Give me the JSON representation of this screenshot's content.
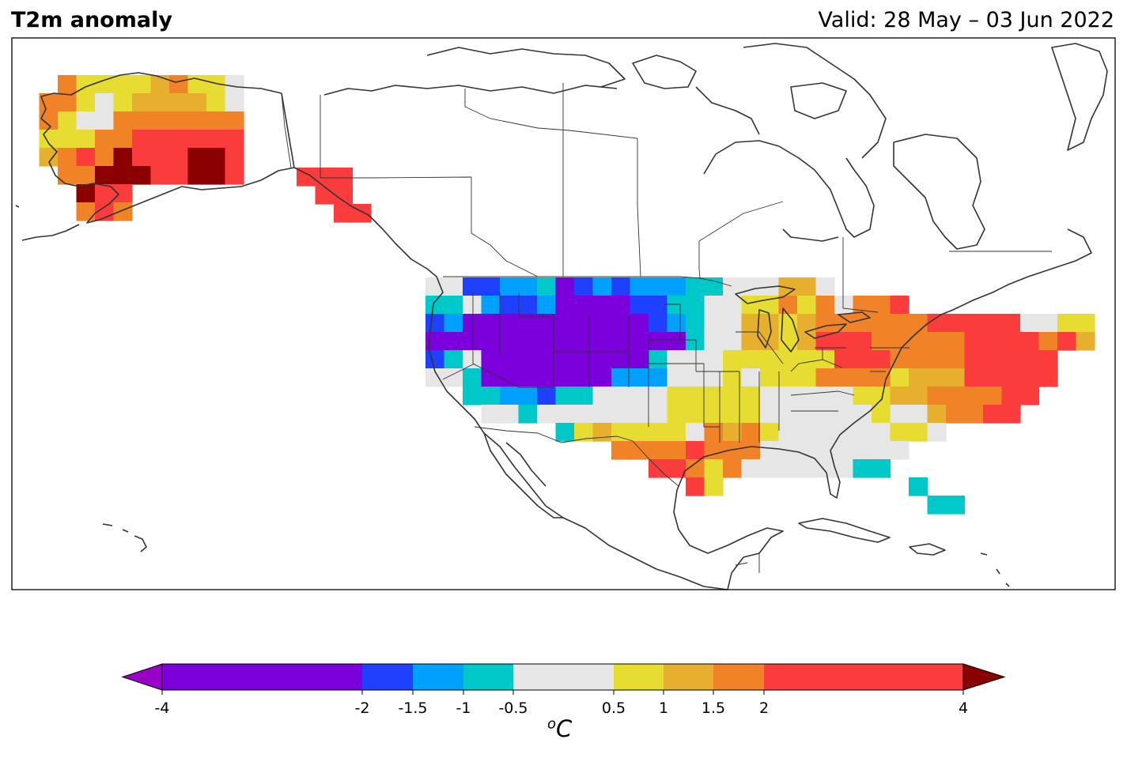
{
  "header": {
    "title": "T2m anomaly",
    "valid": "Valid: 28 May – 03 Jun 2022"
  },
  "colorbar": {
    "unit_sup": "o",
    "unit": "C",
    "ticks": [
      "-4",
      "-2",
      "-1.5",
      "-1",
      "-0.5",
      "0.5",
      "1",
      "1.5",
      "2",
      "4"
    ],
    "tick_values": [
      -4,
      -2,
      -1.5,
      -1,
      -0.5,
      0.5,
      1,
      1.5,
      2,
      4
    ],
    "under_color": "#9b00c8",
    "over_color": "#8b0000",
    "bins": [
      {
        "from": -4,
        "to": -2,
        "color": "#7b00dc"
      },
      {
        "from": -2,
        "to": -1.5,
        "color": "#2040ff"
      },
      {
        "from": -1.5,
        "to": -1,
        "color": "#00a0ff"
      },
      {
        "from": -1,
        "to": -0.5,
        "color": "#00c8c8"
      },
      {
        "from": -0.5,
        "to": 0.5,
        "color": "#e6e6e6"
      },
      {
        "from": 0.5,
        "to": 1,
        "color": "#e6dc32"
      },
      {
        "from": 1,
        "to": 1.5,
        "color": "#e6af2d"
      },
      {
        "from": 1.5,
        "to": 2,
        "color": "#f08228"
      },
      {
        "from": 2,
        "to": 4,
        "color": "#fa3c3c"
      }
    ]
  },
  "anomaly_fields": {
    "alaska": {
      "legend": "P=purple B=blue A=azure C=cyan G=grey Y=yellow O=gold R=orange E=red D=darkred .=none",
      "rows": [
        "..RYYYYORYYG",
        ".RRYGYOOOOYG",
        ".RYGGRRRRRRR",
        ".YYYRREEEEEE",
        ".ORERDEEEDDE",
        "..RRDDDEEDDE",
        "...DEE......",
        "...RER......"
      ]
    },
    "panhandle": {
      "rows": [
        "EEE.",
        ".EE.",
        "..EE"
      ]
    },
    "conus": {
      "rows": [
        "GGBBAACPBABAAACCGGGOOG..............",
        "CCGABBAPPPPBBCCGGYYRYRGRRE..........",
        "BAPPPPPPPPPPBACGGOOYORRRRRREEEEEGGYY",
        "PPPPPPPPPPPPPPCGGOOYOEEERRRRREEEEREO",
        "BCGPPPPPPPPPCGGGYYYYYYEEERRRREEEEE..",
        "GGCPPPPPPPAAAGGGYGYYYRRRRYOOOEEEEE..",
        "..CCAABCCGGGGYYYYYGGGGGYYOORRRREE...",
        "...GGCGGGGGGGYYYYYGGGGGGYGGORREE....",
        ".......CYOYYYYGRORYGGGGGGYYG........",
        "..........RRRRERRRGGGGGGGG..........",
        "............EERYRGGGGGGCC...........",
        "..............EY..........C.........",
        "...........................CC......."
      ]
    }
  }
}
